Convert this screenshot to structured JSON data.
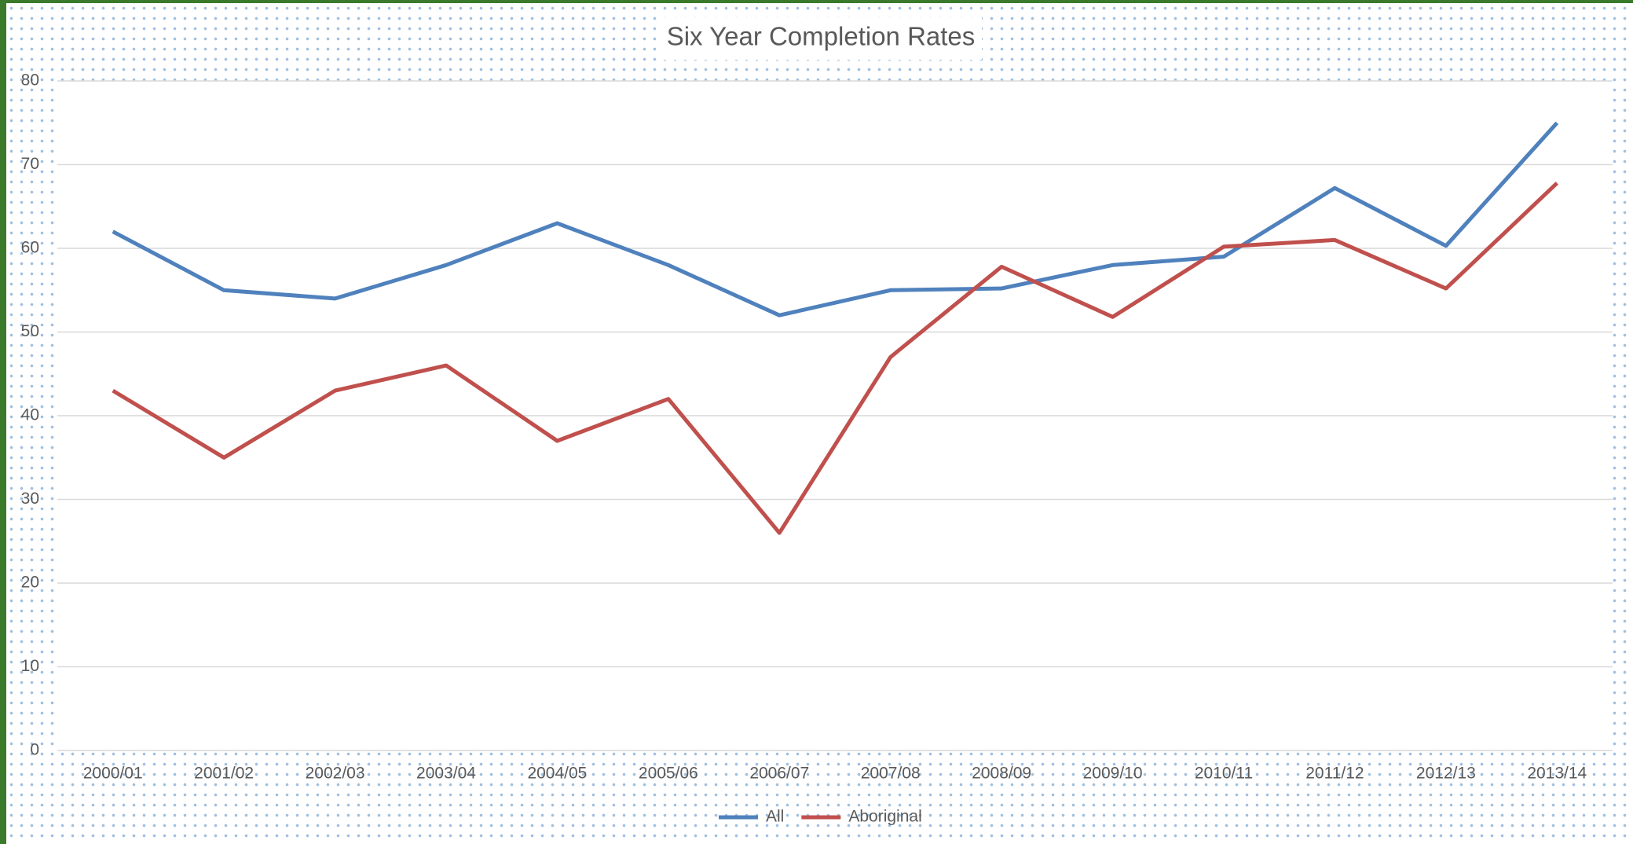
{
  "chart_data": {
    "type": "line",
    "title": "Six Year Completion Rates",
    "categories": [
      "2000/01",
      "2001/02",
      "2002/03",
      "2003/04",
      "2004/05",
      "2005/06",
      "2006/07",
      "2007/08",
      "2008/09",
      "2009/10",
      "2010/11",
      "2011/12",
      "2012/13",
      "2013/14"
    ],
    "series": [
      {
        "name": "All",
        "color": "#4f81bd",
        "values": [
          62,
          55,
          54,
          58,
          63,
          58,
          52,
          55,
          55.2,
          58,
          59,
          67.2,
          60.3,
          75
        ]
      },
      {
        "name": "Aboriginal",
        "color": "#c0504d",
        "values": [
          43,
          35,
          43,
          46,
          37,
          42,
          26,
          47,
          57.8,
          51.8,
          60.2,
          61,
          55.2,
          67.8
        ]
      }
    ],
    "ylim": [
      0,
      80
    ],
    "yticks": [
      0,
      10,
      20,
      30,
      40,
      50,
      60,
      70,
      80
    ],
    "grid": true,
    "legend": "bottom"
  }
}
